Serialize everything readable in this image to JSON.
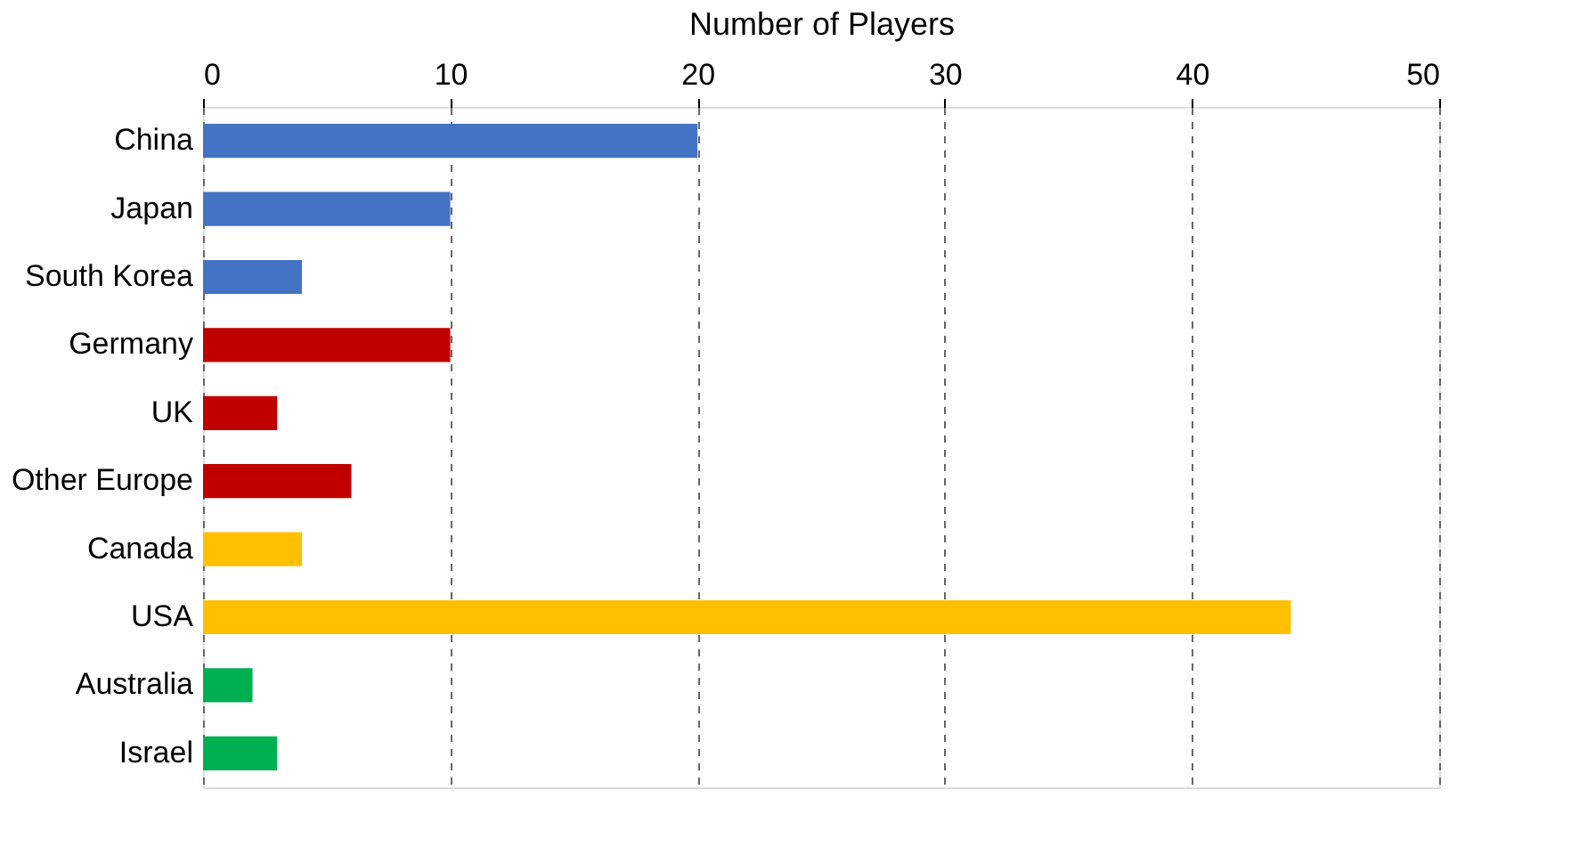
{
  "chart_data": {
    "type": "bar",
    "orientation": "horizontal",
    "xlabel": "Number of Players",
    "categories": [
      "China",
      "Japan",
      "South Korea",
      "Germany",
      "UK",
      "Other Europe",
      "Canada",
      "USA",
      "Australia",
      "Israel"
    ],
    "values": [
      20,
      10,
      4,
      10,
      3,
      6,
      4,
      44,
      2,
      3
    ],
    "colors": [
      "#4472c4",
      "#4472c4",
      "#4472c4",
      "#c00000",
      "#c00000",
      "#c00000",
      "#ffc000",
      "#ffc000",
      "#00b050",
      "#00b050"
    ],
    "xlim": [
      0,
      50
    ],
    "xticks": [
      0,
      10,
      20,
      30,
      40,
      50
    ],
    "grid": "x",
    "legend": false
  }
}
